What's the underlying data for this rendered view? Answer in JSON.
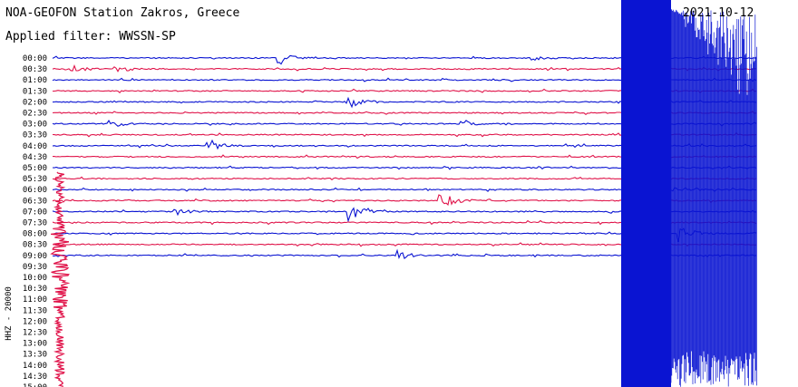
{
  "header": {
    "title": "NOA-GEOFON Station Zakros, Greece",
    "filter": "Applied filter: WWSSN-SP",
    "date": "2021-10-12"
  },
  "chart_data": {
    "type": "line",
    "title": "NOA-GEOFON Station Zakros, Greece",
    "subtitle": "Applied filter: WWSSN-SP",
    "date": "2021-10-12",
    "ylabel": "HHZ - 20000",
    "times": [
      "00:00",
      "00:30",
      "01:00",
      "01:30",
      "02:00",
      "02:30",
      "03:00",
      "03:30",
      "04:00",
      "04:30",
      "05:00",
      "05:30",
      "06:00",
      "06:30",
      "07:00",
      "07:30",
      "08:00",
      "08:30",
      "09:00",
      "09:30",
      "10:00",
      "10:30",
      "11:00",
      "11:30",
      "12:00",
      "12:30",
      "13:00",
      "13:30",
      "14:00",
      "14:30",
      "15:00"
    ],
    "colors": {
      "blue": "#0a14d2",
      "red": "#e0144a"
    },
    "trace_colors": [
      "blue",
      "red",
      "blue",
      "red",
      "blue",
      "red",
      "blue",
      "red",
      "blue",
      "red",
      "blue",
      "red",
      "blue",
      "red",
      "blue",
      "red",
      "blue",
      "red",
      "blue"
    ],
    "recorded_rows": 19,
    "events": [
      {
        "row": 0,
        "x": 0.32,
        "amp": 7
      },
      {
        "row": 0,
        "x": 0.68,
        "amp": 3
      },
      {
        "row": 1,
        "x": 0.02,
        "amp": 6
      },
      {
        "row": 1,
        "x": 0.09,
        "amp": 4
      },
      {
        "row": 4,
        "x": 0.42,
        "amp": 7
      },
      {
        "row": 6,
        "x": 0.08,
        "amp": 5
      },
      {
        "row": 6,
        "x": 0.58,
        "amp": 3
      },
      {
        "row": 8,
        "x": 0.22,
        "amp": 8
      },
      {
        "row": 12,
        "x": 0.88,
        "amp": 4
      },
      {
        "row": 13,
        "x": 0.55,
        "amp": 10
      },
      {
        "row": 14,
        "x": 0.17,
        "amp": 5
      },
      {
        "row": 14,
        "x": 0.42,
        "amp": 11
      },
      {
        "row": 16,
        "x": 0.89,
        "amp": 9
      },
      {
        "row": 18,
        "x": 0.49,
        "amp": 5
      }
    ]
  }
}
